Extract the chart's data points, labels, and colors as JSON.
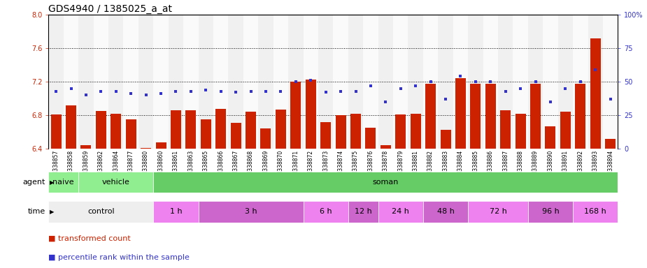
{
  "title": "GDS4940 / 1385025_a_at",
  "samples": [
    "GSM338857",
    "GSM338858",
    "GSM338859",
    "GSM338862",
    "GSM338864",
    "GSM338877",
    "GSM338880",
    "GSM338860",
    "GSM338861",
    "GSM338863",
    "GSM338865",
    "GSM338866",
    "GSM338867",
    "GSM338868",
    "GSM338869",
    "GSM338870",
    "GSM338871",
    "GSM338872",
    "GSM338873",
    "GSM338874",
    "GSM338875",
    "GSM338876",
    "GSM338878",
    "GSM338879",
    "GSM338881",
    "GSM338882",
    "GSM338883",
    "GSM338884",
    "GSM338885",
    "GSM338886",
    "GSM338887",
    "GSM338888",
    "GSM338889",
    "GSM338890",
    "GSM338891",
    "GSM338892",
    "GSM338893",
    "GSM338894"
  ],
  "bar_values": [
    6.81,
    6.92,
    6.44,
    6.85,
    6.82,
    6.75,
    6.41,
    6.48,
    6.86,
    6.86,
    6.75,
    6.88,
    6.71,
    6.84,
    6.64,
    6.87,
    7.2,
    7.23,
    6.72,
    6.8,
    6.82,
    6.65,
    6.44,
    6.81,
    6.82,
    7.18,
    6.63,
    7.24,
    7.18,
    7.18,
    6.86,
    6.82,
    7.18,
    6.67,
    6.84,
    7.18,
    7.72,
    6.52
  ],
  "percentile_values": [
    43,
    45,
    40,
    43,
    43,
    41,
    40,
    41,
    43,
    43,
    44,
    43,
    42,
    43,
    43,
    43,
    50,
    51,
    42,
    43,
    43,
    47,
    35,
    45,
    47,
    50,
    37,
    54,
    50,
    50,
    43,
    45,
    50,
    35,
    45,
    50,
    59,
    37
  ],
  "bar_color": "#CC2200",
  "point_color": "#3333CC",
  "ylim_left": [
    6.4,
    8.0
  ],
  "ylim_right": [
    0,
    100
  ],
  "yticks_left": [
    6.4,
    6.8,
    7.2,
    7.6,
    8.0
  ],
  "yticks_right": [
    0,
    25,
    50,
    75,
    100
  ],
  "grid_values": [
    6.8,
    7.2,
    7.6
  ],
  "agent_groups": [
    {
      "label": "naive",
      "start": 0,
      "end": 2,
      "color": "#90EE90"
    },
    {
      "label": "vehicle",
      "start": 2,
      "end": 7,
      "color": "#90EE90"
    },
    {
      "label": "soman",
      "start": 7,
      "end": 38,
      "color": "#66CC66"
    }
  ],
  "time_groups": [
    {
      "label": "control",
      "start": 0,
      "end": 7,
      "color": "#EEEEEE"
    },
    {
      "label": "1 h",
      "start": 7,
      "end": 10,
      "color": "#EE82EE"
    },
    {
      "label": "3 h",
      "start": 10,
      "end": 17,
      "color": "#CC66CC"
    },
    {
      "label": "6 h",
      "start": 17,
      "end": 20,
      "color": "#EE82EE"
    },
    {
      "label": "12 h",
      "start": 20,
      "end": 22,
      "color": "#CC66CC"
    },
    {
      "label": "24 h",
      "start": 22,
      "end": 25,
      "color": "#EE82EE"
    },
    {
      "label": "48 h",
      "start": 25,
      "end": 28,
      "color": "#CC66CC"
    },
    {
      "label": "72 h",
      "start": 28,
      "end": 32,
      "color": "#EE82EE"
    },
    {
      "label": "96 h",
      "start": 32,
      "end": 35,
      "color": "#CC66CC"
    },
    {
      "label": "168 h",
      "start": 35,
      "end": 38,
      "color": "#EE82EE"
    }
  ],
  "legend_bar_label": "transformed count",
  "legend_point_label": "percentile rank within the sample",
  "title_fontsize": 10,
  "tick_fontsize": 7,
  "label_fontsize": 8,
  "xtick_fontsize": 5.5
}
